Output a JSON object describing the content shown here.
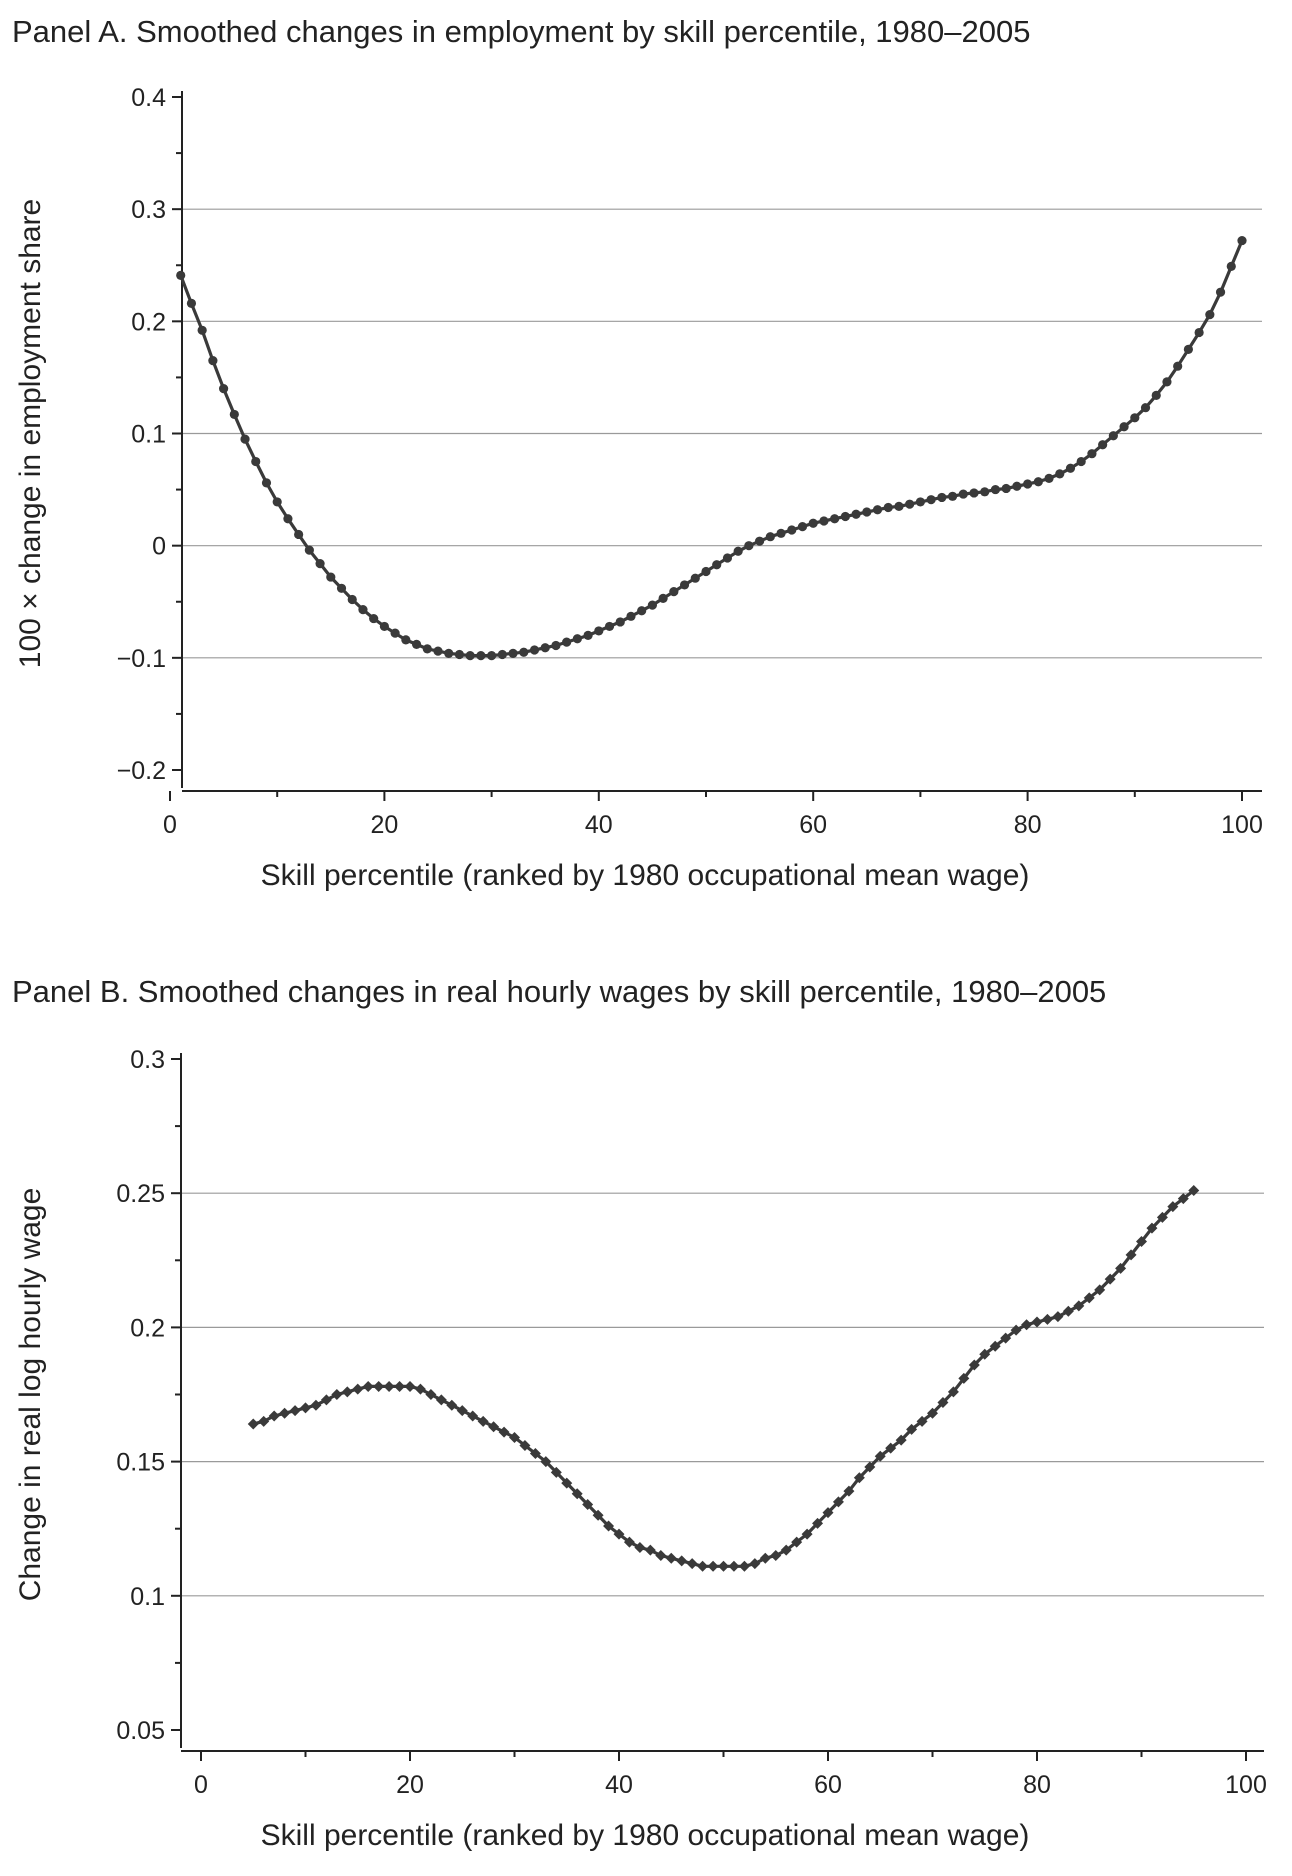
{
  "chart_data": [
    {
      "type": "line",
      "title": "Panel A. Smoothed changes in employment by skill percentile, 1980–2005",
      "xlabel": "Skill percentile (ranked by 1980 occupational mean wage)",
      "ylabel": "100 × change in employment share",
      "xlim": [
        0,
        100
      ],
      "ylim": [
        -0.2,
        0.4
      ],
      "xticks": [
        0,
        20,
        40,
        60,
        80,
        100
      ],
      "xtick_labels": [
        "0",
        "20",
        "40",
        "60",
        "80",
        "100"
      ],
      "yticks": [
        0.4,
        0.3,
        0.2,
        0.1,
        0,
        -0.1,
        -0.2
      ],
      "ytick_labels": [
        "0.4",
        "0.3",
        "0.2",
        "0.1",
        "0",
        "−0.1",
        "−0.2"
      ],
      "grid": true,
      "marker": "circle",
      "color": "#3a3a3a",
      "points": [
        [
          1,
          0.241
        ],
        [
          2,
          0.216
        ],
        [
          3,
          0.192
        ],
        [
          4,
          0.165
        ],
        [
          5,
          0.14
        ],
        [
          6,
          0.117
        ],
        [
          7,
          0.095
        ],
        [
          8,
          0.075
        ],
        [
          9,
          0.056
        ],
        [
          10,
          0.039
        ],
        [
          11,
          0.024
        ],
        [
          12,
          0.01
        ],
        [
          13,
          -0.004
        ],
        [
          14,
          -0.016
        ],
        [
          15,
          -0.028
        ],
        [
          16,
          -0.038
        ],
        [
          17,
          -0.048
        ],
        [
          18,
          -0.057
        ],
        [
          19,
          -0.065
        ],
        [
          20,
          -0.072
        ],
        [
          21,
          -0.078
        ],
        [
          22,
          -0.084
        ],
        [
          23,
          -0.088
        ],
        [
          24,
          -0.092
        ],
        [
          25,
          -0.094
        ],
        [
          26,
          -0.096
        ],
        [
          27,
          -0.097
        ],
        [
          28,
          -0.098
        ],
        [
          29,
          -0.098
        ],
        [
          30,
          -0.098
        ],
        [
          31,
          -0.097
        ],
        [
          32,
          -0.096
        ],
        [
          33,
          -0.095
        ],
        [
          34,
          -0.093
        ],
        [
          35,
          -0.091
        ],
        [
          36,
          -0.089
        ],
        [
          37,
          -0.086
        ],
        [
          38,
          -0.083
        ],
        [
          39,
          -0.08
        ],
        [
          40,
          -0.076
        ],
        [
          41,
          -0.072
        ],
        [
          42,
          -0.068
        ],
        [
          43,
          -0.063
        ],
        [
          44,
          -0.058
        ],
        [
          45,
          -0.053
        ],
        [
          46,
          -0.047
        ],
        [
          47,
          -0.041
        ],
        [
          48,
          -0.035
        ],
        [
          49,
          -0.029
        ],
        [
          50,
          -0.023
        ],
        [
          51,
          -0.017
        ],
        [
          52,
          -0.011
        ],
        [
          53,
          -0.005
        ],
        [
          54,
          0.0
        ],
        [
          55,
          0.004
        ],
        [
          56,
          0.008
        ],
        [
          57,
          0.011
        ],
        [
          58,
          0.014
        ],
        [
          59,
          0.017
        ],
        [
          60,
          0.02
        ],
        [
          61,
          0.022
        ],
        [
          62,
          0.024
        ],
        [
          63,
          0.026
        ],
        [
          64,
          0.028
        ],
        [
          65,
          0.03
        ],
        [
          66,
          0.032
        ],
        [
          67,
          0.034
        ],
        [
          68,
          0.035
        ],
        [
          69,
          0.037
        ],
        [
          70,
          0.039
        ],
        [
          71,
          0.041
        ],
        [
          72,
          0.043
        ],
        [
          73,
          0.044
        ],
        [
          74,
          0.046
        ],
        [
          75,
          0.047
        ],
        [
          76,
          0.048
        ],
        [
          77,
          0.05
        ],
        [
          78,
          0.051
        ],
        [
          79,
          0.053
        ],
        [
          80,
          0.055
        ],
        [
          81,
          0.057
        ],
        [
          82,
          0.06
        ],
        [
          83,
          0.064
        ],
        [
          84,
          0.069
        ],
        [
          85,
          0.075
        ],
        [
          86,
          0.082
        ],
        [
          87,
          0.09
        ],
        [
          88,
          0.098
        ],
        [
          89,
          0.106
        ],
        [
          90,
          0.114
        ],
        [
          91,
          0.123
        ],
        [
          92,
          0.134
        ],
        [
          93,
          0.146
        ],
        [
          94,
          0.16
        ],
        [
          95,
          0.175
        ],
        [
          96,
          0.19
        ],
        [
          97,
          0.206
        ],
        [
          98,
          0.226
        ],
        [
          99,
          0.249
        ],
        [
          100,
          0.272
        ]
      ]
    },
    {
      "type": "line",
      "title": "Panel B. Smoothed changes in real hourly wages by skill percentile, 1980–2005",
      "xlabel": "Skill percentile (ranked by 1980 occupational mean wage)",
      "ylabel": "Change in real log hourly wage",
      "xlim": [
        0,
        100
      ],
      "ylim": [
        0.05,
        0.3
      ],
      "xticks": [
        0,
        20,
        40,
        60,
        80,
        100
      ],
      "xtick_labels": [
        "0",
        "20",
        "40",
        "60",
        "80",
        "100"
      ],
      "yticks": [
        0.3,
        0.25,
        0.2,
        0.15,
        0.1,
        0.05
      ],
      "ytick_labels": [
        "0.3",
        "0.25",
        "0.2",
        "0.15",
        "0.1",
        "0.05"
      ],
      "grid": true,
      "marker": "diamond",
      "color": "#3a3a3a",
      "points": [
        [
          5,
          0.164
        ],
        [
          6,
          0.165
        ],
        [
          7,
          0.167
        ],
        [
          8,
          0.168
        ],
        [
          9,
          0.169
        ],
        [
          10,
          0.17
        ],
        [
          11,
          0.171
        ],
        [
          12,
          0.173
        ],
        [
          13,
          0.175
        ],
        [
          14,
          0.176
        ],
        [
          15,
          0.177
        ],
        [
          16,
          0.178
        ],
        [
          17,
          0.178
        ],
        [
          18,
          0.178
        ],
        [
          19,
          0.178
        ],
        [
          20,
          0.178
        ],
        [
          21,
          0.177
        ],
        [
          22,
          0.175
        ],
        [
          23,
          0.173
        ],
        [
          24,
          0.171
        ],
        [
          25,
          0.169
        ],
        [
          26,
          0.167
        ],
        [
          27,
          0.165
        ],
        [
          28,
          0.163
        ],
        [
          29,
          0.161
        ],
        [
          30,
          0.159
        ],
        [
          31,
          0.156
        ],
        [
          32,
          0.153
        ],
        [
          33,
          0.15
        ],
        [
          34,
          0.146
        ],
        [
          35,
          0.142
        ],
        [
          36,
          0.138
        ],
        [
          37,
          0.134
        ],
        [
          38,
          0.13
        ],
        [
          39,
          0.126
        ],
        [
          40,
          0.123
        ],
        [
          41,
          0.12
        ],
        [
          42,
          0.118
        ],
        [
          43,
          0.117
        ],
        [
          44,
          0.115
        ],
        [
          45,
          0.114
        ],
        [
          46,
          0.113
        ],
        [
          47,
          0.112
        ],
        [
          48,
          0.111
        ],
        [
          49,
          0.111
        ],
        [
          50,
          0.111
        ],
        [
          51,
          0.111
        ],
        [
          52,
          0.111
        ],
        [
          53,
          0.112
        ],
        [
          54,
          0.114
        ],
        [
          55,
          0.115
        ],
        [
          56,
          0.117
        ],
        [
          57,
          0.12
        ],
        [
          58,
          0.123
        ],
        [
          59,
          0.127
        ],
        [
          60,
          0.131
        ],
        [
          61,
          0.135
        ],
        [
          62,
          0.139
        ],
        [
          63,
          0.144
        ],
        [
          64,
          0.148
        ],
        [
          65,
          0.152
        ],
        [
          66,
          0.155
        ],
        [
          67,
          0.158
        ],
        [
          68,
          0.162
        ],
        [
          69,
          0.165
        ],
        [
          70,
          0.168
        ],
        [
          71,
          0.172
        ],
        [
          72,
          0.176
        ],
        [
          73,
          0.181
        ],
        [
          74,
          0.186
        ],
        [
          75,
          0.19
        ],
        [
          76,
          0.193
        ],
        [
          77,
          0.196
        ],
        [
          78,
          0.199
        ],
        [
          79,
          0.201
        ],
        [
          80,
          0.202
        ],
        [
          81,
          0.203
        ],
        [
          82,
          0.204
        ],
        [
          83,
          0.206
        ],
        [
          84,
          0.208
        ],
        [
          85,
          0.211
        ],
        [
          86,
          0.214
        ],
        [
          87,
          0.218
        ],
        [
          88,
          0.222
        ],
        [
          89,
          0.227
        ],
        [
          90,
          0.232
        ],
        [
          91,
          0.237
        ],
        [
          92,
          0.241
        ],
        [
          93,
          0.245
        ],
        [
          94,
          0.248
        ],
        [
          95,
          0.251
        ]
      ]
    }
  ]
}
